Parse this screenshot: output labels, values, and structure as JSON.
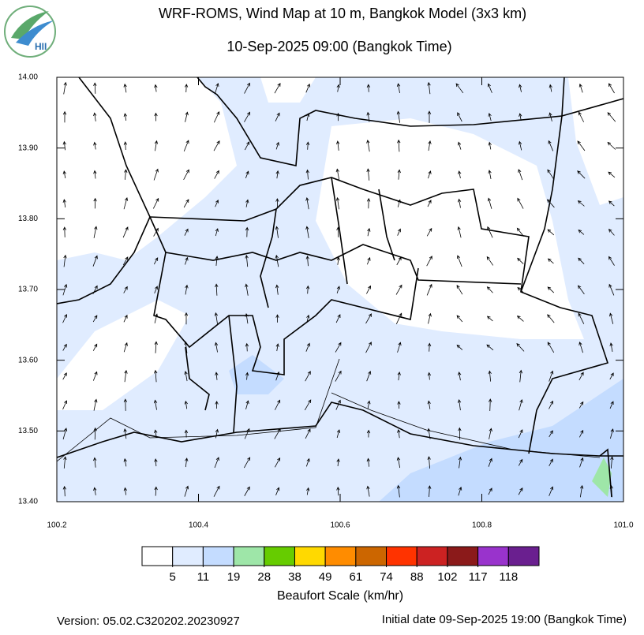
{
  "header": {
    "title": "WRF-ROMS, Wind Map at 10 m, Bangkok Model (3x3 km)",
    "subtitle": "10-Sep-2025 09:00 (Bangkok Time)",
    "logo": "HII"
  },
  "map": {
    "xlim": [
      100.2,
      101
    ],
    "ylim": [
      13.4,
      14
    ],
    "xticks": [
      100.2,
      100.4,
      100.6,
      100.8,
      {
        "value": 101,
        "label": "101.0"
      }
    ],
    "yticks": [
      {
        "value": 13.4,
        "label": "13.40"
      },
      {
        "value": 13.5,
        "label": "13.50"
      },
      {
        "value": 13.6,
        "label": "13.60"
      },
      {
        "value": 13.7,
        "label": "13.70"
      },
      {
        "value": 13.8,
        "label": "13.80"
      },
      {
        "value": 13.9,
        "label": "13.90"
      },
      {
        "value": 14,
        "label": "14.00"
      }
    ]
  },
  "colorbar": {
    "title": "Beaufort Scale (km/hr)",
    "colors": [
      "#ffffff",
      "#e0ecff",
      "#c4dcff",
      "#9ee6a8",
      "#66cc00",
      "#ffd900",
      "#ff8c00",
      "#cc6600",
      "#ff3300",
      "#cc2222",
      "#8b1a1a",
      "#9933cc",
      "#6a1f8f"
    ],
    "labels": [
      5,
      11,
      19,
      28,
      38,
      49,
      61,
      74,
      88,
      102,
      117,
      118
    ]
  },
  "footer": {
    "version": "Version: 05.02.C320202.20230927",
    "initial_date": "Initial date 09-Sep-2025 19:00 (Bangkok Time)"
  }
}
